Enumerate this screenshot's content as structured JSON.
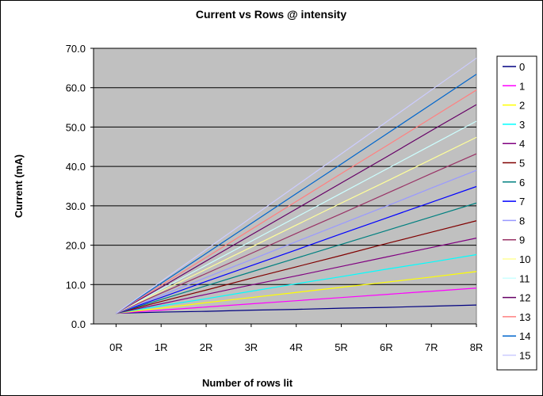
{
  "chart_data": {
    "type": "line",
    "title": "Current vs Rows @ intensity",
    "xlabel": "Number of rows lit",
    "ylabel": "Current (mA)",
    "categories": [
      "0R",
      "1R",
      "2R",
      "3R",
      "4R",
      "5R",
      "6R",
      "7R",
      "8R"
    ],
    "ylim": [
      0,
      70
    ],
    "yticks": [
      "0.0",
      "10.0",
      "20.0",
      "30.0",
      "40.0",
      "50.0",
      "60.0",
      "70.0"
    ],
    "grid": true,
    "legend_position": "right",
    "plot_background": "#c0c0c0",
    "series": [
      {
        "name": "0",
        "color": "#000080",
        "values": [
          2.7,
          3.0,
          3.2,
          3.5,
          3.7,
          4.0,
          4.2,
          4.5,
          4.8
        ]
      },
      {
        "name": "1",
        "color": "#ff00ff",
        "values": [
          2.7,
          3.5,
          4.3,
          5.1,
          5.9,
          6.7,
          7.5,
          8.3,
          9.1
        ]
      },
      {
        "name": "2",
        "color": "#ffff00",
        "values": [
          2.7,
          4.0,
          5.4,
          6.7,
          8.0,
          9.3,
          10.6,
          11.9,
          13.3
        ]
      },
      {
        "name": "3",
        "color": "#00ffff",
        "values": [
          2.7,
          4.6,
          6.4,
          8.3,
          10.2,
          12.0,
          13.9,
          15.7,
          17.6
        ]
      },
      {
        "name": "4",
        "color": "#800080",
        "values": [
          2.7,
          5.1,
          7.5,
          9.9,
          12.2,
          14.6,
          17.0,
          19.4,
          21.8
        ]
      },
      {
        "name": "5",
        "color": "#800000",
        "values": [
          2.7,
          5.7,
          8.6,
          11.6,
          14.5,
          17.4,
          20.4,
          23.3,
          26.2
        ]
      },
      {
        "name": "6",
        "color": "#008080",
        "values": [
          2.7,
          6.2,
          9.7,
          13.2,
          16.7,
          20.2,
          23.7,
          27.2,
          30.7
        ]
      },
      {
        "name": "7",
        "color": "#0000ff",
        "values": [
          2.7,
          6.7,
          10.8,
          14.8,
          18.8,
          22.9,
          26.9,
          30.9,
          34.9
        ]
      },
      {
        "name": "8",
        "color": "#9999ff",
        "values": [
          2.7,
          7.2,
          11.8,
          16.3,
          20.9,
          25.4,
          29.9,
          34.5,
          39.0
        ]
      },
      {
        "name": "9",
        "color": "#993366",
        "values": [
          2.7,
          7.8,
          12.8,
          17.9,
          23.0,
          28.0,
          33.1,
          38.2,
          43.2
        ]
      },
      {
        "name": "10",
        "color": "#ffff99",
        "values": [
          2.7,
          8.3,
          13.9,
          19.5,
          25.1,
          30.7,
          36.2,
          41.8,
          47.4
        ]
      },
      {
        "name": "11",
        "color": "#ccffff",
        "values": [
          2.7,
          8.8,
          14.9,
          21.0,
          27.1,
          33.2,
          39.3,
          45.4,
          51.5
        ]
      },
      {
        "name": "12",
        "color": "#660066",
        "values": [
          2.7,
          9.3,
          16.0,
          22.6,
          29.2,
          35.8,
          42.4,
          49.1,
          55.7
        ]
      },
      {
        "name": "13",
        "color": "#ff8080",
        "values": [
          2.7,
          9.8,
          16.9,
          24.0,
          31.1,
          38.2,
          45.2,
          52.3,
          59.4
        ]
      },
      {
        "name": "14",
        "color": "#0066cc",
        "values": [
          2.7,
          10.3,
          17.9,
          25.5,
          33.1,
          40.6,
          48.2,
          55.8,
          63.4
        ]
      },
      {
        "name": "15",
        "color": "#ccccff",
        "values": [
          2.7,
          10.8,
          18.9,
          27.0,
          35.1,
          43.2,
          51.3,
          59.4,
          67.5
        ]
      }
    ]
  }
}
